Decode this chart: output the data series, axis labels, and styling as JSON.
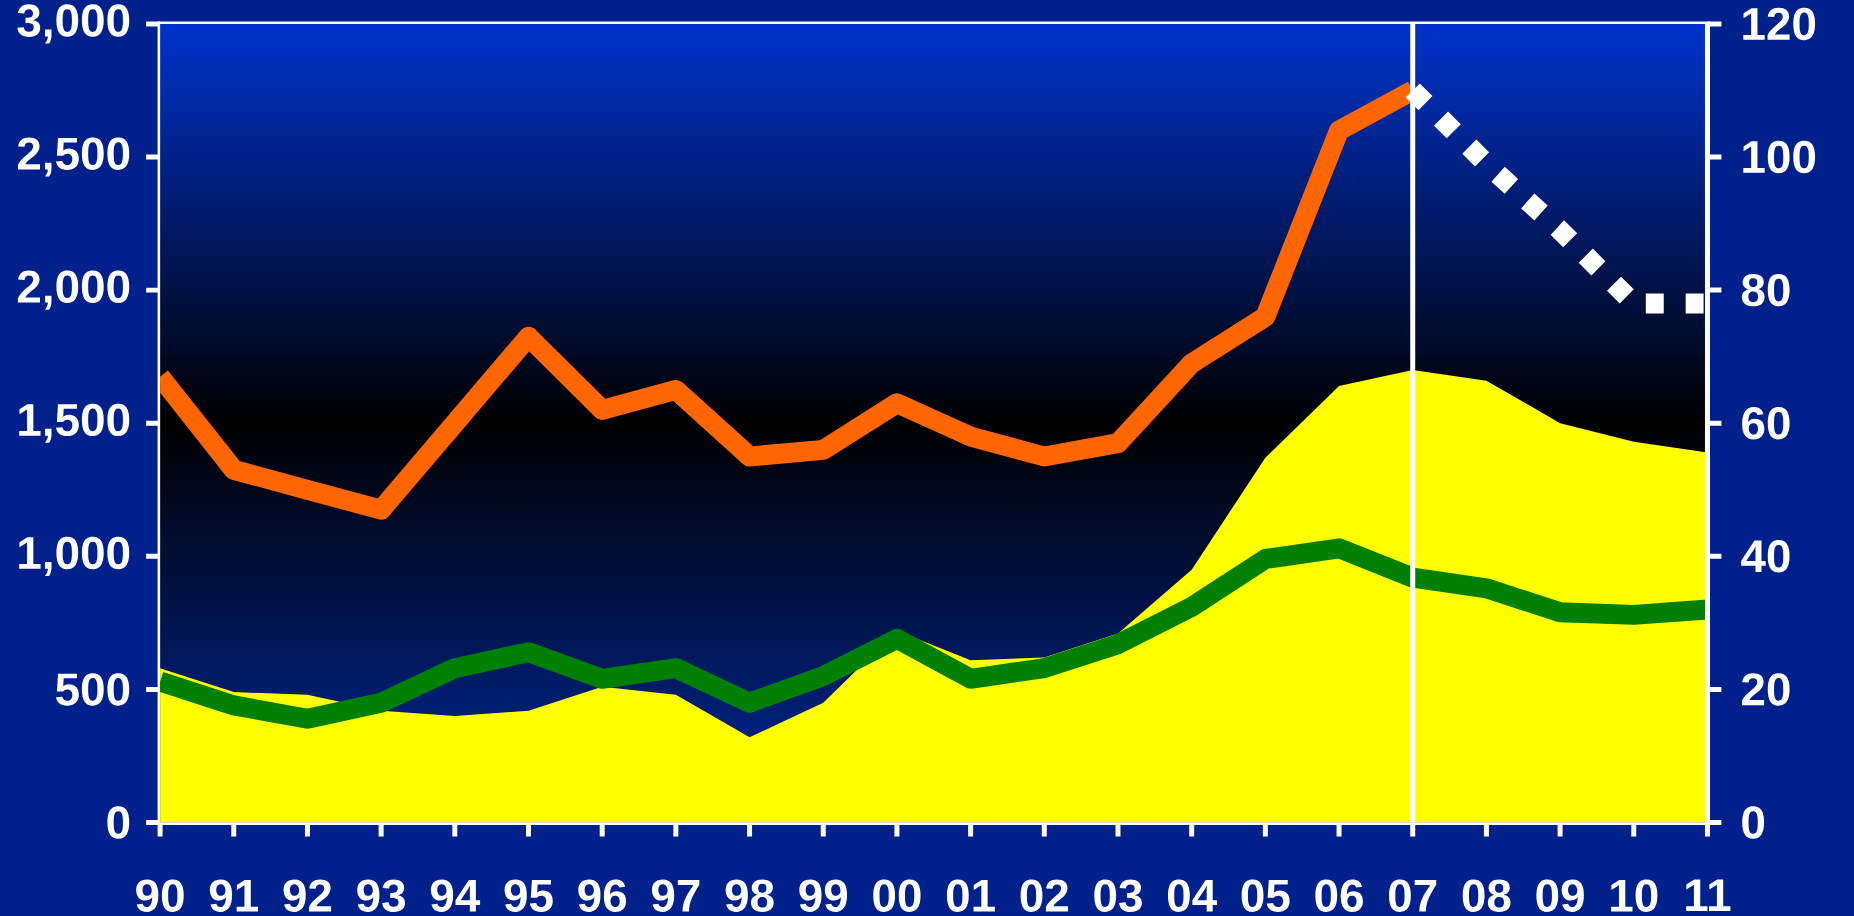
{
  "chart_data": {
    "type": "line",
    "categories": [
      "90",
      "91",
      "92",
      "93",
      "94",
      "95",
      "96",
      "97",
      "98",
      "99",
      "00",
      "01",
      "02",
      "03",
      "04",
      "05",
      "06",
      "07",
      "08",
      "09",
      "10",
      "11"
    ],
    "series": [
      {
        "type": "area",
        "color": "#ffff00",
        "values": [
          580,
          490,
          480,
          420,
          400,
          420,
          510,
          480,
          320,
          450,
          720,
          610,
          620,
          710,
          950,
          1370,
          1640,
          1700,
          1660,
          1500,
          1430,
          1390
        ]
      },
      {
        "color": "#008000",
        "values": [
          530,
          440,
          390,
          450,
          580,
          640,
          540,
          580,
          450,
          550,
          690,
          540,
          580,
          670,
          810,
          990,
          1030,
          920,
          880,
          790,
          780,
          800
        ]
      },
      {
        "color": "#ff6600",
        "axis": "y2",
        "values": [
          67,
          53,
          50,
          47,
          60,
          73,
          62,
          65,
          55,
          56,
          63,
          58,
          55,
          57,
          69,
          76,
          104,
          110,
          null,
          null,
          null,
          null
        ]
      },
      {
        "color": "#ffffff",
        "axis": "y2",
        "line_style": "dotted",
        "values": [
          null,
          null,
          null,
          null,
          null,
          null,
          null,
          null,
          null,
          null,
          null,
          null,
          null,
          null,
          null,
          null,
          null,
          110,
          99,
          89,
          78,
          78
        ]
      }
    ],
    "ylim": [
      0,
      3000
    ],
    "yticks": [
      0,
      {
        "value": 500,
        "label": "500"
      },
      {
        "value": 1000,
        "label": "1,000"
      },
      {
        "value": 1500,
        "label": "1,500"
      },
      {
        "value": 2000,
        "label": "2,000"
      },
      {
        "value": 2500,
        "label": "2,500"
      },
      {
        "value": 3000,
        "label": "3,000"
      }
    ],
    "y2lim": [
      0,
      120
    ],
    "y2ticks": [
      0,
      20,
      40,
      60,
      80,
      100,
      120
    ],
    "ref_lines": [
      {
        "axis": "x",
        "value": "07",
        "color": "#ffffff"
      }
    ]
  }
}
